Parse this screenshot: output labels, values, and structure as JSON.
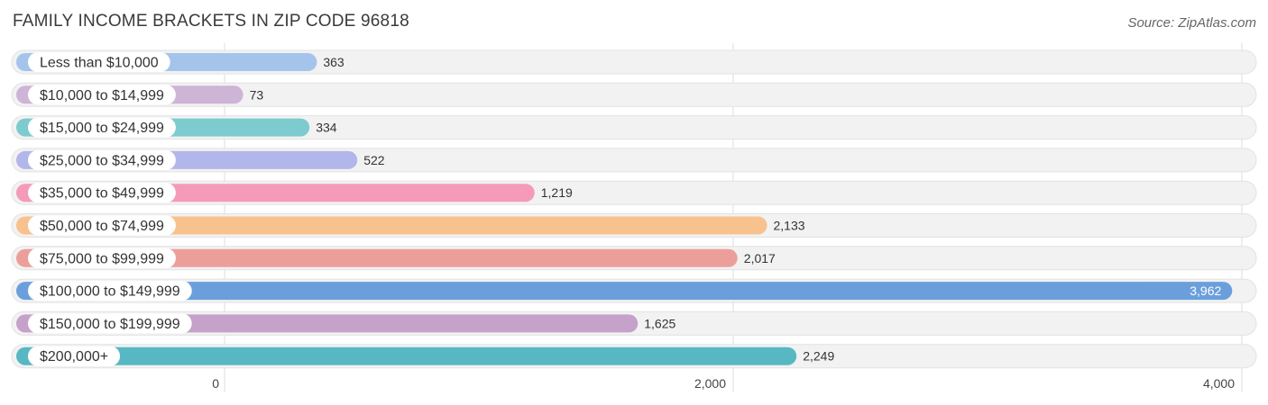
{
  "chart_data": {
    "type": "bar",
    "orientation": "horizontal",
    "title": "FAMILY INCOME BRACKETS IN ZIP CODE 96818",
    "source": "Source: ZipAtlas.com",
    "categories": [
      "Less than $10,000",
      "$10,000 to $14,999",
      "$15,000 to $24,999",
      "$25,000 to $34,999",
      "$35,000 to $49,999",
      "$50,000 to $74,999",
      "$75,000 to $99,999",
      "$100,000 to $149,999",
      "$150,000 to $199,999",
      "$200,000+"
    ],
    "values": [
      363,
      73,
      334,
      522,
      1219,
      2133,
      2017,
      3962,
      1625,
      2249
    ],
    "value_labels": [
      "363",
      "73",
      "334",
      "522",
      "1,219",
      "2,133",
      "2,017",
      "3,962",
      "1,625",
      "2,249"
    ],
    "colors": [
      "#a5c4ec",
      "#ceb4d7",
      "#7dcbcf",
      "#b3b6ea",
      "#f59ab9",
      "#f8c28e",
      "#ec9f9a",
      "#6b9fdc",
      "#c6a1ca",
      "#57b8c4"
    ],
    "xlim": [
      0,
      4000
    ],
    "ticks": [
      0,
      2000,
      4000
    ],
    "tick_labels": [
      "0",
      "2,000",
      "4,000"
    ],
    "xlabel": "",
    "ylabel": "",
    "grid": true
  }
}
